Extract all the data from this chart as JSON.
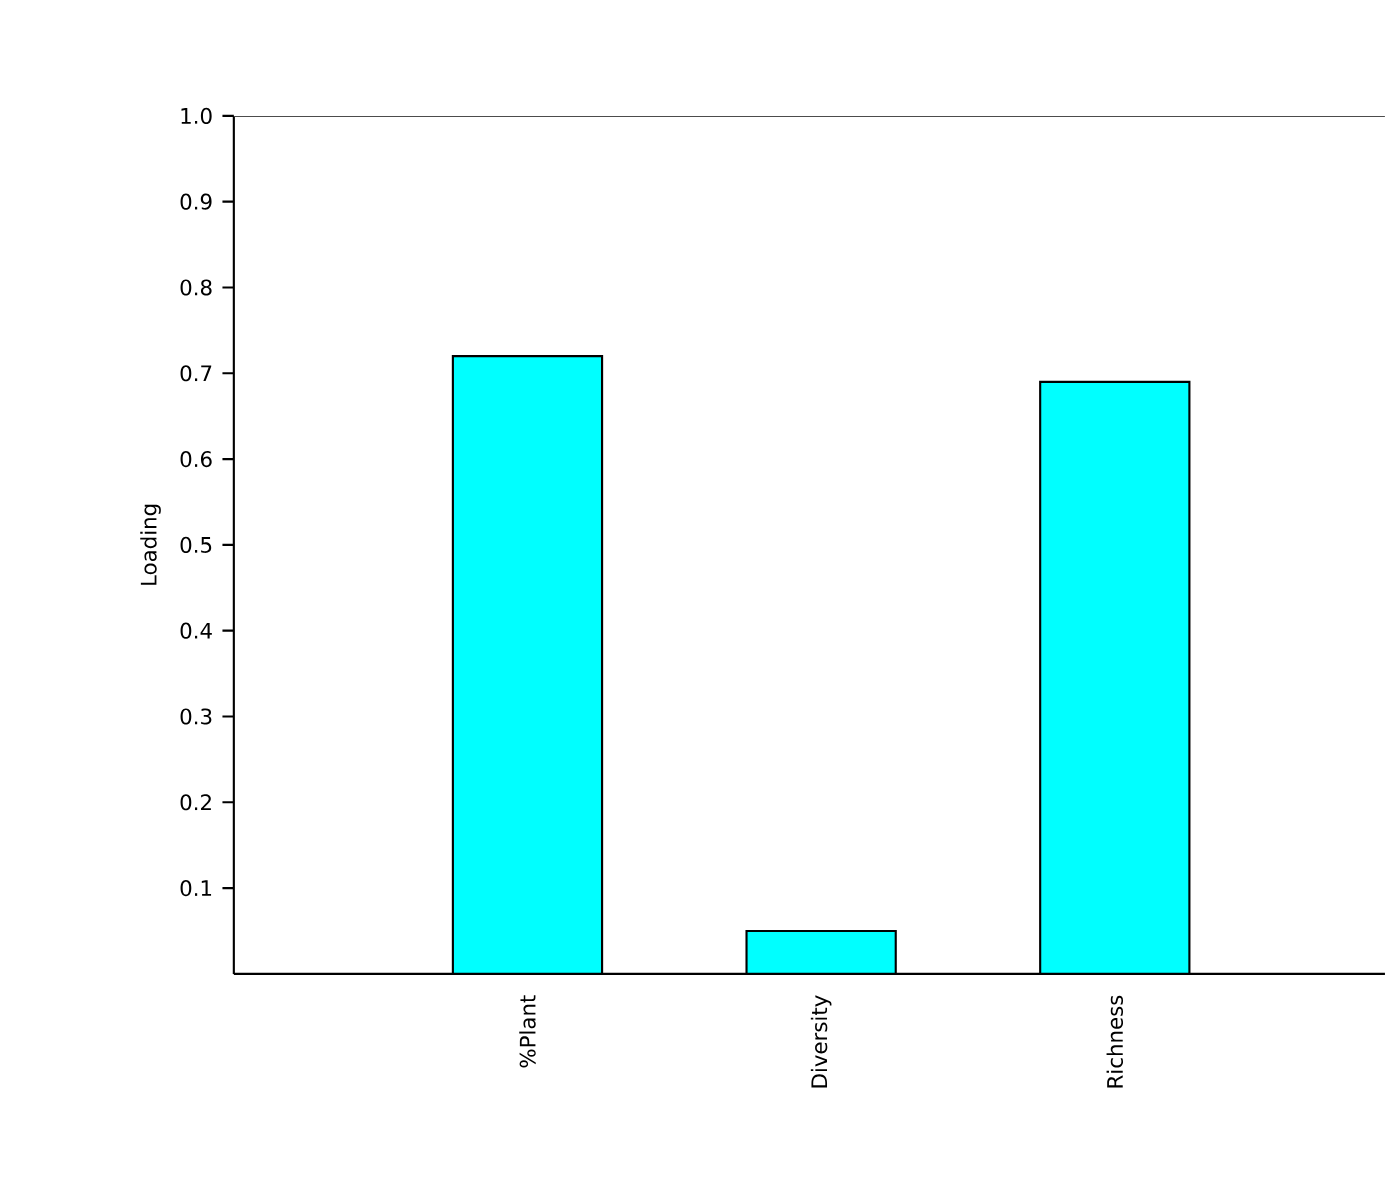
{
  "chart_data": {
    "type": "bar",
    "ylabel": "Loading",
    "categories": [
      "%Plant",
      "Diversity",
      "Richness"
    ],
    "values": [
      0.72,
      0.05,
      0.69
    ],
    "color": "#00ffff",
    "ylim": [
      0,
      1.0
    ],
    "yticks": [
      0.1,
      0.2,
      0.3,
      0.4,
      0.5,
      0.6,
      0.7,
      0.8,
      0.9,
      {
        "value": 1.0,
        "label": "1.0"
      }
    ],
    "grid": false
  }
}
